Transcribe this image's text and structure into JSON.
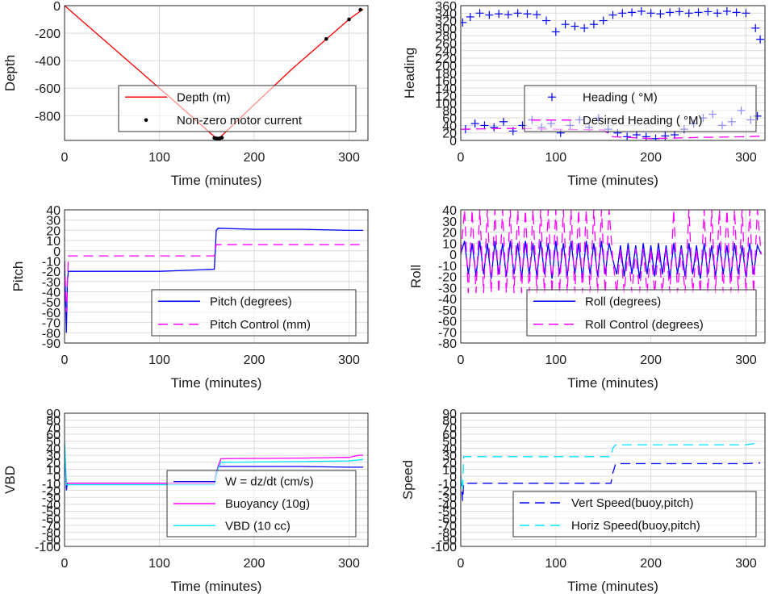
{
  "chart_data": [
    {
      "id": "depth",
      "type": "line",
      "xlabel": "Time (minutes)",
      "ylabel": "Depth",
      "xlim": [
        0,
        320
      ],
      "ylim": [
        -980,
        0
      ],
      "xticks": [
        0,
        100,
        200,
        300
      ],
      "yticks": [
        0,
        -200,
        -400,
        -600,
        -800
      ],
      "grid": true,
      "legend": "inside-right",
      "series": [
        {
          "name": "Depth (m)",
          "kind": "line",
          "color": "#ff0000",
          "dash": "",
          "x": [
            0,
            40,
            80,
            120,
            160,
            163,
            200,
            240,
            280,
            300,
            315
          ],
          "y": [
            0,
            -240,
            -480,
            -720,
            -965,
            -965,
            -720,
            -460,
            -220,
            -100,
            -25
          ]
        },
        {
          "name": "Non-zero motor current",
          "kind": "marker",
          "marker": "dot",
          "color": "#000000",
          "x": [
            158,
            160,
            162,
            164,
            166,
            276,
            300,
            312
          ],
          "y": [
            -962,
            -965,
            -967,
            -964,
            -960,
            -242,
            -100,
            -30
          ]
        }
      ]
    },
    {
      "id": "heading",
      "type": "scatter",
      "xlabel": "Time (minutes)",
      "ylabel": "Heading",
      "xlim": [
        0,
        320
      ],
      "ylim": [
        0,
        360
      ],
      "xticks": [
        0,
        100,
        200,
        300
      ],
      "yticks": [
        0,
        20,
        40,
        60,
        80,
        100,
        120,
        140,
        160,
        180,
        200,
        220,
        240,
        260,
        280,
        300,
        320,
        340,
        360
      ],
      "grid": true,
      "legend": "inside-right",
      "series": [
        {
          "name": "Heading ( °M)",
          "kind": "marker",
          "marker": "plus",
          "color": "#0000ff",
          "x": [
            2,
            10,
            20,
            30,
            40,
            50,
            60,
            70,
            80,
            90,
            100,
            110,
            120,
            130,
            140,
            150,
            160,
            170,
            180,
            190,
            200,
            210,
            220,
            230,
            240,
            250,
            260,
            270,
            280,
            290,
            300,
            310,
            315,
            5,
            15,
            25,
            35,
            45,
            55,
            65,
            75,
            85,
            95,
            105,
            115,
            125,
            135,
            145,
            155,
            165,
            175,
            185,
            195,
            205,
            215,
            225,
            235,
            245,
            255,
            265,
            275,
            285,
            295,
            305,
            312
          ],
          "y": [
            315,
            330,
            340,
            335,
            338,
            336,
            340,
            338,
            336,
            320,
            290,
            310,
            305,
            300,
            310,
            320,
            335,
            340,
            342,
            345,
            340,
            338,
            342,
            344,
            340,
            342,
            344,
            340,
            345,
            342,
            340,
            300,
            270,
            30,
            45,
            40,
            35,
            50,
            25,
            40,
            55,
            35,
            45,
            20,
            40,
            55,
            35,
            60,
            30,
            20,
            10,
            15,
            10,
            5,
            12,
            15,
            30,
            45,
            60,
            70,
            40,
            50,
            80,
            55,
            65
          ]
        },
        {
          "name": "Desired Heading ( °M)",
          "kind": "line",
          "color": "#ff00ff",
          "dash": "12,7",
          "x": [
            0,
            50,
            100,
            150,
            160,
            200,
            250,
            300,
            320
          ],
          "y": [
            30,
            32,
            30,
            28,
            10,
            5,
            8,
            10,
            12
          ]
        }
      ]
    },
    {
      "id": "pitch",
      "type": "line",
      "xlabel": "Time (minutes)",
      "ylabel": "Pitch",
      "xlim": [
        0,
        320
      ],
      "ylim": [
        -90,
        40
      ],
      "xticks": [
        0,
        100,
        200,
        300
      ],
      "yticks": [
        40,
        30,
        20,
        10,
        0,
        -10,
        -20,
        -30,
        -40,
        -50,
        -60,
        -70,
        -80,
        -90
      ],
      "grid": true,
      "legend": "inside-right",
      "series": [
        {
          "name": "Pitch (degrees)",
          "kind": "line",
          "color": "#0000ff",
          "dash": "",
          "x": [
            0,
            2,
            3,
            4,
            30,
            60,
            100,
            130,
            158,
            159,
            160,
            162,
            200,
            250,
            300,
            315
          ],
          "y": [
            -10,
            -80,
            -30,
            -20,
            -20,
            -20,
            -20,
            -19,
            -18,
            0,
            20,
            22,
            21,
            21,
            20,
            20
          ]
        },
        {
          "name": "Pitch Control (mm)",
          "kind": "line",
          "color": "#ff00ff",
          "dash": "12,7",
          "x": [
            0,
            2,
            4,
            60,
            120,
            158,
            160,
            220,
            315
          ],
          "y": [
            -10,
            -60,
            -5,
            -5,
            -5,
            -5,
            6,
            6,
            6
          ]
        }
      ]
    },
    {
      "id": "roll",
      "type": "line",
      "xlabel": "Time (minutes)",
      "ylabel": "Roll",
      "xlim": [
        0,
        320
      ],
      "ylim": [
        -80,
        40
      ],
      "xticks": [
        0,
        100,
        200,
        300
      ],
      "yticks": [
        40,
        30,
        20,
        10,
        0,
        -10,
        -20,
        -30,
        -40,
        -50,
        -60,
        -70,
        -80
      ],
      "grid": true,
      "legend": "inside-right",
      "series": [
        {
          "name": "Roll (degrees)",
          "kind": "line",
          "color": "#0000ff",
          "dash": "",
          "x": [
            0,
            4,
            8,
            12,
            16,
            20,
            24,
            28,
            32,
            36,
            40,
            44,
            48,
            52,
            56,
            60,
            64,
            68,
            72,
            76,
            80,
            84,
            88,
            92,
            96,
            100,
            104,
            108,
            112,
            116,
            120,
            124,
            128,
            132,
            136,
            140,
            144,
            148,
            152,
            156,
            160,
            164,
            168,
            172,
            176,
            180,
            184,
            188,
            192,
            196,
            200,
            204,
            208,
            212,
            216,
            220,
            224,
            228,
            232,
            236,
            240,
            244,
            248,
            252,
            256,
            260,
            264,
            268,
            272,
            276,
            280,
            284,
            288,
            292,
            296,
            300,
            304,
            308,
            312,
            316
          ],
          "y": [
            0,
            12,
            -18,
            10,
            -20,
            12,
            -18,
            10,
            -22,
            12,
            -18,
            10,
            -20,
            12,
            -18,
            10,
            -22,
            12,
            -18,
            10,
            -20,
            12,
            -18,
            10,
            -22,
            12,
            -18,
            10,
            -20,
            12,
            -18,
            10,
            -22,
            12,
            -18,
            10,
            -20,
            12,
            -18,
            10,
            -5,
            -18,
            8,
            -20,
            10,
            -18,
            8,
            -22,
            10,
            -18,
            8,
            -20,
            10,
            -18,
            8,
            -22,
            10,
            -18,
            8,
            -20,
            10,
            -18,
            8,
            -22,
            10,
            -18,
            8,
            -20,
            10,
            -18,
            8,
            -22,
            10,
            -18,
            8,
            -20,
            10,
            -18,
            8,
            0
          ]
        },
        {
          "name": "Roll Control (degrees)",
          "kind": "line",
          "color": "#ff00ff",
          "dash": "12,7",
          "x": [
            0,
            4,
            8,
            12,
            16,
            20,
            24,
            28,
            32,
            36,
            40,
            44,
            48,
            52,
            56,
            60,
            64,
            68,
            72,
            76,
            80,
            84,
            88,
            92,
            96,
            100,
            104,
            108,
            112,
            116,
            120,
            124,
            128,
            132,
            136,
            140,
            144,
            148,
            152,
            156,
            160,
            164,
            168,
            172,
            176,
            180,
            184,
            188,
            192,
            196,
            200,
            204,
            208,
            212,
            216,
            220,
            224,
            228,
            232,
            236,
            240,
            244,
            248,
            252,
            256,
            260,
            264,
            268,
            272,
            276,
            280,
            284,
            288,
            292,
            296,
            300,
            304,
            308,
            312,
            316
          ],
          "y": [
            0,
            40,
            -35,
            40,
            -35,
            40,
            -35,
            40,
            -35,
            40,
            -35,
            40,
            -35,
            40,
            -35,
            40,
            -35,
            40,
            -35,
            40,
            -35,
            40,
            -35,
            40,
            -35,
            40,
            -35,
            40,
            -35,
            40,
            -35,
            40,
            -35,
            40,
            -35,
            40,
            -35,
            40,
            -35,
            40,
            -5,
            -35,
            5,
            -35,
            5,
            -35,
            5,
            -35,
            5,
            -35,
            5,
            -35,
            5,
            -35,
            5,
            -35,
            40,
            -35,
            5,
            -35,
            40,
            -35,
            5,
            -35,
            40,
            -35,
            40,
            -35,
            40,
            -35,
            40,
            -35,
            40,
            -35,
            40,
            -35,
            40,
            -35,
            40,
            0
          ]
        }
      ]
    },
    {
      "id": "vbd",
      "type": "line",
      "xlabel": "Time (minutes)",
      "ylabel": "VBD",
      "xlim": [
        0,
        320
      ],
      "ylim": [
        -100,
        90
      ],
      "xticks": [
        0,
        100,
        200,
        300
      ],
      "yticks": [
        90,
        80,
        70,
        60,
        50,
        40,
        30,
        20,
        10,
        0,
        -10,
        -20,
        -30,
        -40,
        -50,
        -60,
        -70,
        -80,
        -90,
        -100
      ],
      "grid": true,
      "legend": "inside-right",
      "series": [
        {
          "name": "W = dz/dt (cm/s)",
          "kind": "line",
          "color": "#0000ff",
          "dash": "",
          "x": [
            0,
            2,
            3,
            4,
            40,
            80,
            120,
            158,
            160,
            162,
            200,
            250,
            300,
            315
          ],
          "y": [
            40,
            -20,
            -10,
            -10,
            -10,
            -10,
            -10,
            -10,
            5,
            14,
            14,
            14,
            13,
            13
          ]
        },
        {
          "name": "Buoyancy (10g)",
          "kind": "line",
          "color": "#ff00ff",
          "dash": "",
          "x": [
            0,
            2,
            3,
            4,
            80,
            158,
            162,
            165,
            250,
            300,
            310,
            315
          ],
          "y": [
            45,
            -10,
            -10,
            -10,
            -10,
            -10,
            15,
            25,
            26,
            27,
            30,
            30
          ]
        },
        {
          "name": "VBD (10 cc)",
          "kind": "line",
          "color": "#00e5ff",
          "dash": "",
          "x": [
            0,
            2,
            3,
            4,
            80,
            158,
            162,
            165,
            250,
            300,
            315
          ],
          "y": [
            50,
            -12,
            -12,
            -12,
            -12,
            -12,
            12,
            20,
            21,
            22,
            24
          ]
        }
      ]
    },
    {
      "id": "speed",
      "type": "line",
      "xlabel": "Time (minutes)",
      "ylabel": "Speed",
      "xlim": [
        0,
        320
      ],
      "ylim": [
        -100,
        90
      ],
      "xticks": [
        0,
        100,
        200,
        300
      ],
      "yticks": [
        90,
        80,
        70,
        60,
        50,
        40,
        30,
        20,
        10,
        0,
        -10,
        -20,
        -30,
        -40,
        -50,
        -60,
        -70,
        -80,
        -90,
        -100
      ],
      "grid": true,
      "legend": "inside-right",
      "series": [
        {
          "name": "Vert Speed(buoy,pitch)",
          "kind": "line",
          "color": "#0000ff",
          "dash": "12,7",
          "x": [
            0,
            2,
            3,
            4,
            50,
            100,
            150,
            158,
            160,
            163,
            200,
            250,
            300,
            315
          ],
          "y": [
            0,
            -35,
            -10,
            -10,
            -10,
            -10,
            -10,
            -10,
            5,
            18,
            18,
            18,
            18,
            19
          ]
        },
        {
          "name": "Horiz Speed(buoy,pitch)",
          "kind": "line",
          "color": "#00e5ff",
          "dash": "12,7",
          "x": [
            0,
            2,
            3,
            4,
            50,
            100,
            150,
            158,
            160,
            163,
            200,
            250,
            300,
            315
          ],
          "y": [
            0,
            -20,
            28,
            28,
            28,
            28,
            28,
            28,
            40,
            45,
            45,
            45,
            45,
            48
          ]
        }
      ]
    }
  ]
}
